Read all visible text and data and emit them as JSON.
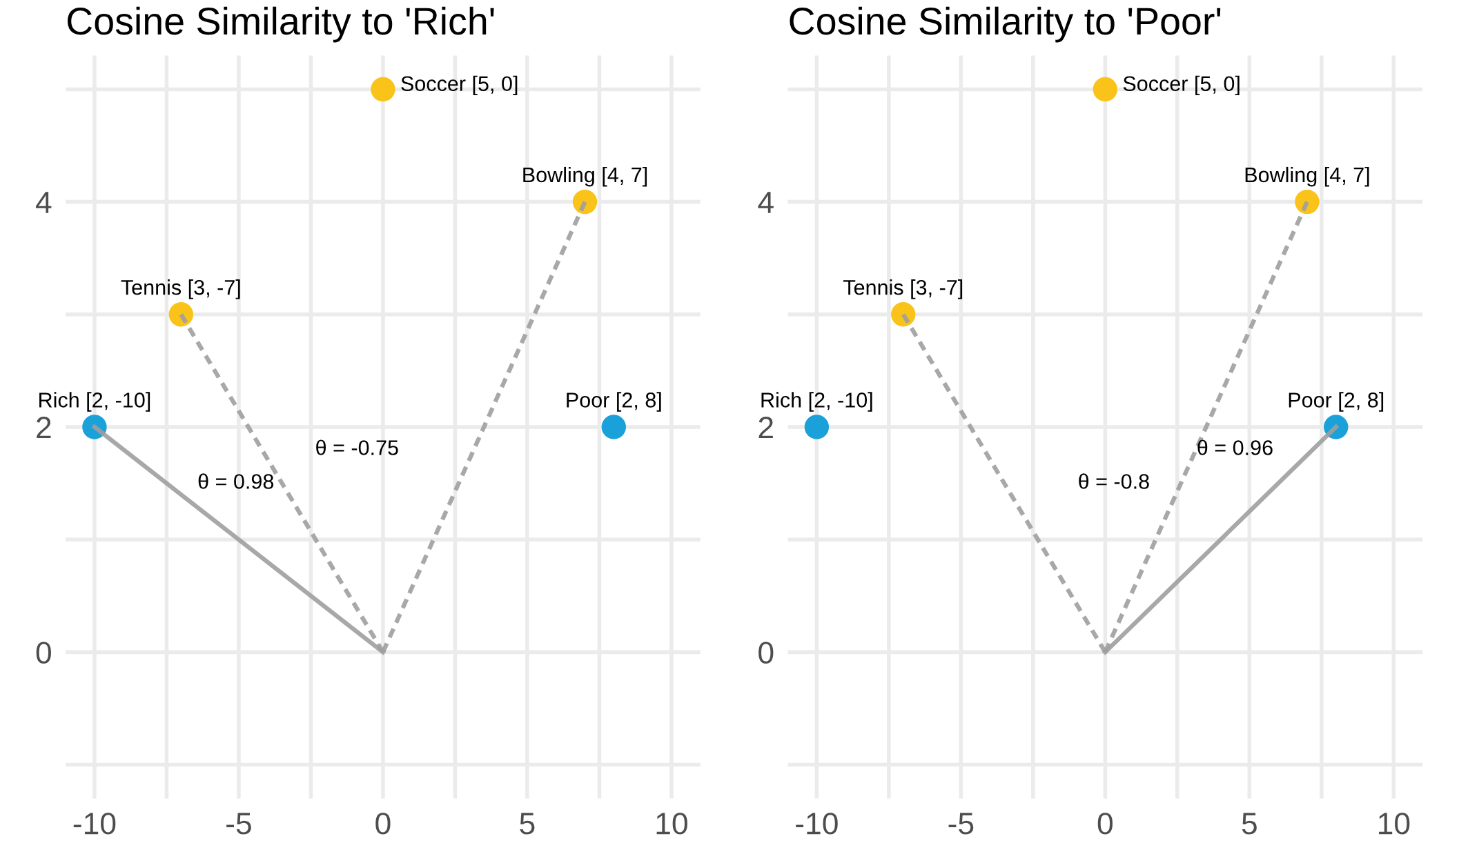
{
  "chart_data": [
    {
      "type": "scatter",
      "title": "Cosine Similarity to 'Rich'",
      "xlim": [
        -11,
        11
      ],
      "ylim": [
        -1.3,
        5.3
      ],
      "xticks": [
        -10,
        {
          "value": -7.5,
          "label": null
        },
        -5,
        {
          "value": -2.5,
          "label": null
        },
        0,
        {
          "value": 2.5,
          "label": null
        },
        5,
        {
          "value": 7.5,
          "label": null
        },
        10
      ],
      "yticks": [
        {
          "value": -1,
          "label": null
        },
        0,
        {
          "value": 1,
          "label": null
        },
        2,
        {
          "value": 3,
          "label": null
        },
        4,
        {
          "value": 5,
          "label": null
        }
      ],
      "grid": true,
      "series": [
        {
          "type": "line",
          "color": "#9e9e9e",
          "line_style": "solid",
          "x": [
            0,
            -10
          ],
          "values": [
            0,
            2
          ]
        },
        {
          "type": "line",
          "color": "#9e9e9e",
          "line_style": "dashed",
          "x": [
            0,
            -7
          ],
          "values": [
            0,
            3
          ]
        },
        {
          "type": "line",
          "color": "#9e9e9e",
          "line_style": "dashed",
          "x": [
            0,
            7
          ],
          "values": [
            0,
            4
          ]
        },
        {
          "marker": "circle",
          "color": "#f9c31a",
          "x": [
            0,
            7,
            -7
          ],
          "values": [
            5,
            4,
            3
          ],
          "value_labels": [
            "Soccer [5, 0]",
            "Bowling [4, 7]",
            "Tennis [3, -7]"
          ]
        },
        {
          "marker": "circle",
          "color": "#1aa1d9",
          "x": [
            -10,
            8
          ],
          "values": [
            2,
            2
          ],
          "value_labels": [
            "Rich [2, -10]",
            "Poor [2, 8]"
          ]
        }
      ],
      "annotations": [
        "θ = 0.98",
        "θ = -0.75"
      ]
    },
    {
      "type": "scatter",
      "title": "Cosine Similarity to 'Poor'",
      "xlim": [
        -11,
        11
      ],
      "ylim": [
        -1.3,
        5.3
      ],
      "xticks": [
        -10,
        {
          "value": -7.5,
          "label": null
        },
        -5,
        {
          "value": -2.5,
          "label": null
        },
        0,
        {
          "value": 2.5,
          "label": null
        },
        5,
        {
          "value": 7.5,
          "label": null
        },
        10
      ],
      "yticks": [
        {
          "value": -1,
          "label": null
        },
        0,
        {
          "value": 1,
          "label": null
        },
        2,
        {
          "value": 3,
          "label": null
        },
        4,
        {
          "value": 5,
          "label": null
        }
      ],
      "grid": true,
      "series": [
        {
          "type": "line",
          "color": "#9e9e9e",
          "line_style": "solid",
          "x": [
            0,
            8
          ],
          "values": [
            0,
            2
          ]
        },
        {
          "type": "line",
          "color": "#9e9e9e",
          "line_style": "dashed",
          "x": [
            0,
            -7
          ],
          "values": [
            0,
            3
          ]
        },
        {
          "type": "line",
          "color": "#9e9e9e",
          "line_style": "dashed",
          "x": [
            0,
            7
          ],
          "values": [
            0,
            4
          ]
        },
        {
          "marker": "circle",
          "color": "#f9c31a",
          "x": [
            0,
            7,
            -7
          ],
          "values": [
            5,
            4,
            3
          ],
          "value_labels": [
            "Soccer [5, 0]",
            "Bowling [4, 7]",
            "Tennis [3, -7]"
          ]
        },
        {
          "marker": "circle",
          "color": "#1aa1d9",
          "x": [
            -10,
            8
          ],
          "values": [
            2,
            2
          ],
          "value_labels": [
            "Rich [2, -10]",
            "Poor [2, 8]"
          ]
        }
      ],
      "annotations": [
        "θ = -0.8",
        "θ = 0.96"
      ]
    }
  ]
}
